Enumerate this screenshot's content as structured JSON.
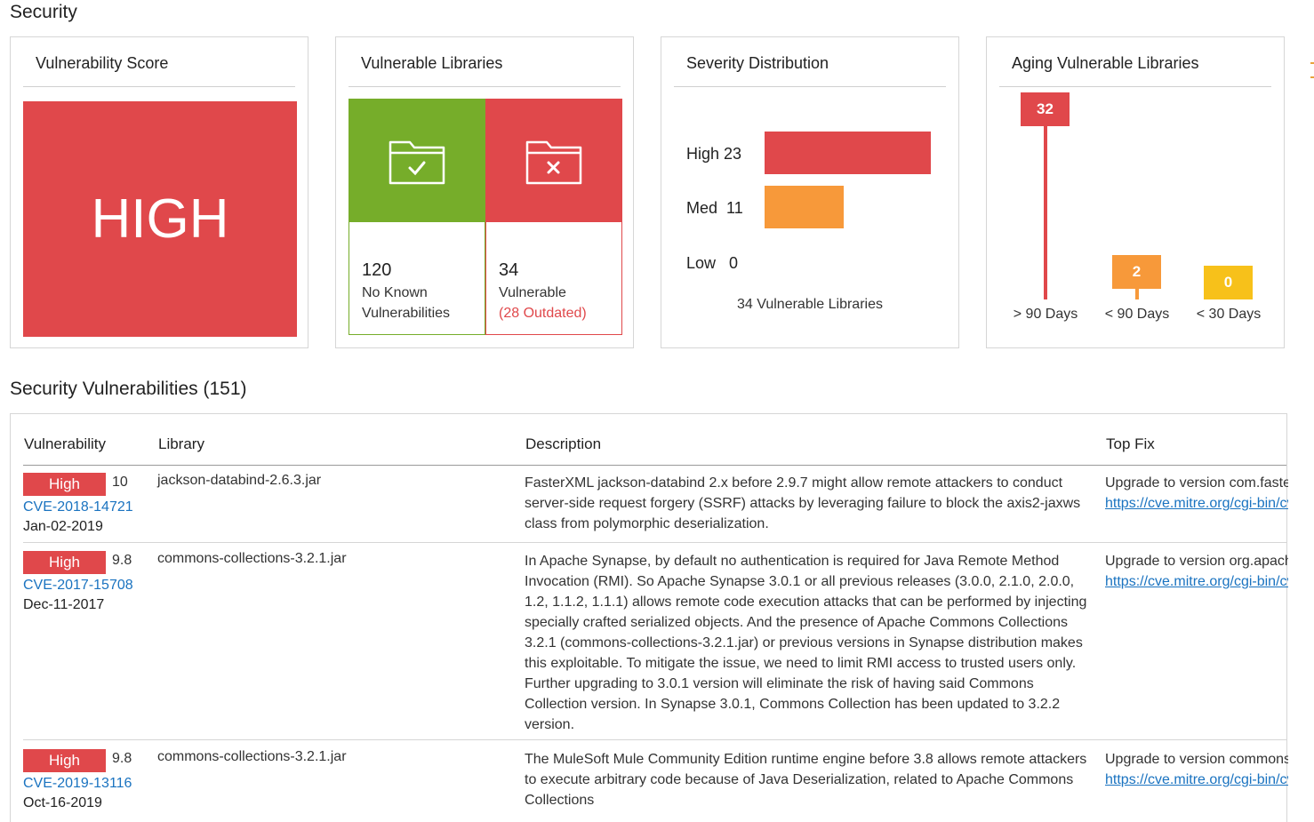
{
  "header": {
    "title": "Security"
  },
  "score_card": {
    "title": "Vulnerability Score",
    "value": "HIGH",
    "color": "#e0484b"
  },
  "libraries_card": {
    "title": "Vulnerable Libraries",
    "safe": {
      "icon": "folder-check-icon",
      "count": "120",
      "label_line1": "No Known",
      "label_line2": "Vulnerabilities",
      "color": "#76ad2a"
    },
    "vulnerable": {
      "icon": "folder-x-icon",
      "count": "34",
      "label": "Vulnerable",
      "outdated": "(28 Outdated)",
      "color": "#e0484b"
    }
  },
  "severity_card": {
    "title": "Severity Distribution",
    "rows": [
      {
        "label": "High",
        "count": "23",
        "value": 23,
        "color": "#e0484b"
      },
      {
        "label": "Med",
        "count": "11",
        "value": 11,
        "color": "#f7993a"
      },
      {
        "label": "Low",
        "count": "0",
        "value": 0,
        "color": "#f7c11a"
      }
    ],
    "total": "34 Vulnerable Libraries"
  },
  "aging_card": {
    "title": "Aging Vulnerable Libraries",
    "columns": [
      {
        "value": "32",
        "num": 32,
        "label": "> 90 Days",
        "color": "#e0484b"
      },
      {
        "value": "2",
        "num": 2,
        "label": "< 90 Days",
        "color": "#f7993a"
      },
      {
        "value": "0",
        "num": 0,
        "label": "< 30 Days",
        "color": "#f7c11a"
      }
    ]
  },
  "vulns": {
    "title": "Security Vulnerabilities (151)",
    "columns": {
      "vulnerability": "Vulnerability",
      "library": "Library",
      "description": "Description",
      "top_fix": "Top Fix"
    },
    "rows": [
      {
        "severity": "High",
        "score": "10",
        "cve": "CVE-2018-14721",
        "date": "Jan-02-2019",
        "library": "jackson-databind-2.6.3.jar",
        "description": "FasterXML jackson-databind 2.x before 2.9.7 might allow remote attackers to conduct server-side request forgery (SSRF) attacks by leveraging failure to block the axis2-jaxws class from polymorphic deserialization.",
        "fix": "Upgrade to version com.faste",
        "fix_link": "https://cve.mitre.org/cgi-bin/cvename.cgi"
      },
      {
        "severity": "High",
        "score": "9.8",
        "cve": "CVE-2017-15708",
        "date": "Dec-11-2017",
        "library": "commons-collections-3.2.1.jar",
        "description": "In Apache Synapse, by default no authentication is required for Java Remote Method Invocation (RMI). So Apache Synapse 3.0.1 or all previous releases (3.0.0, 2.1.0, 2.0.0, 1.2, 1.1.2, 1.1.1) allows remote code execution attacks that can be performed by injecting specially crafted serialized objects. And the presence of Apache Commons Collections 3.2.1 (commons-collections-3.2.1.jar) or previous versions in Synapse distribution makes this exploitable. To mitigate the issue, we need to limit RMI access to trusted users only. Further upgrading to 3.0.1 version will eliminate the risk of having said Commons Collection version. In Synapse 3.0.1, Commons Collection has been updated to 3.2.2 version.",
        "fix": "Upgrade to version org.apach",
        "fix_link": "https://cve.mitre.org/cgi-bin/cvename.cgi"
      },
      {
        "severity": "High",
        "score": "9.8",
        "cve": "CVE-2019-13116",
        "date": "Oct-16-2019",
        "library": "commons-collections-3.2.1.jar",
        "description": "The MuleSoft Mule Community Edition runtime engine before 3.8 allows remote attackers to execute arbitrary code because of Java Deserialization, related to Apache Commons Collections",
        "fix": "Upgrade to version commons",
        "fix_link": "https://cve.mitre.org/cgi-bin/cvename.cgi"
      }
    ]
  }
}
